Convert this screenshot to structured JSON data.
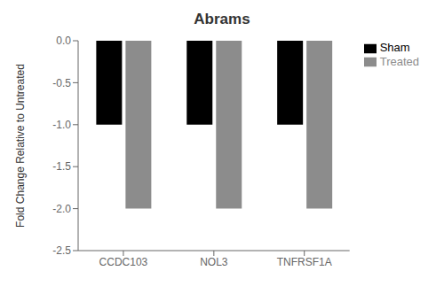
{
  "chart_data": {
    "type": "bar",
    "title": "Abrams",
    "ylabel": "Fold Change Relative to Untreated",
    "categories": [
      "CCDC103",
      "NOL3",
      "TNFRSF1A"
    ],
    "series": [
      {
        "name": "Sham",
        "color": "#000000",
        "values": [
          -1.0,
          -1.0,
          -1.0
        ]
      },
      {
        "name": "Treated",
        "color": "#8c8c8c",
        "values": [
          -2.0,
          -2.0,
          -2.0
        ]
      }
    ],
    "ylim": [
      -2.5,
      0.0
    ],
    "yticks": [
      {
        "value": 0.0,
        "label": "0.0"
      },
      -0.5,
      {
        "value": -1.0,
        "label": "-1.0"
      },
      -1.5,
      {
        "value": -2.0,
        "label": "-2.0"
      },
      -2.5
    ],
    "grid": false,
    "legend": "right"
  }
}
